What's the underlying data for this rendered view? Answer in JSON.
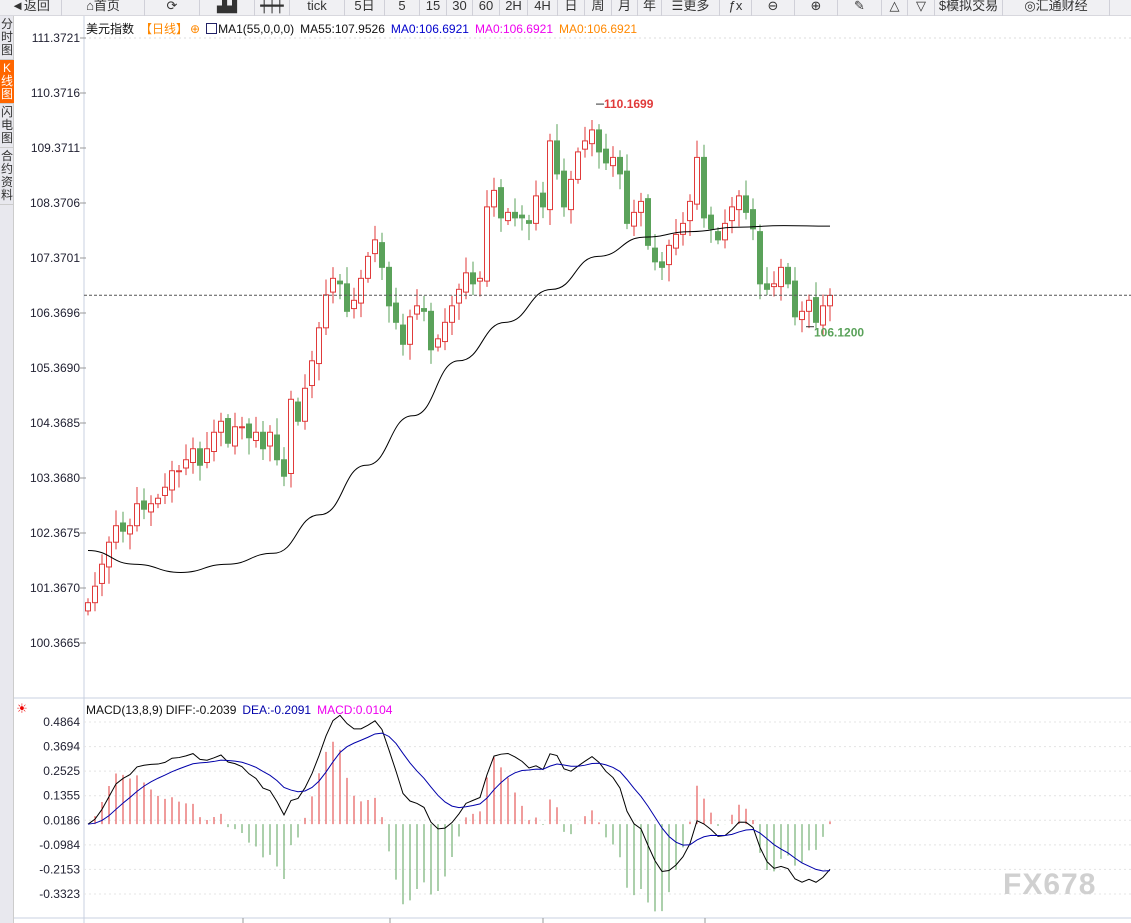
{
  "toolbar": [
    {
      "label": "◄返回",
      "name": "back-button",
      "w": 62
    },
    {
      "label": "⌂首页",
      "name": "home-button",
      "w": 83
    },
    {
      "label": "⟳",
      "name": "refresh-button",
      "w": 55
    },
    {
      "label": "▟▟",
      "name": "chart-type-button",
      "w": 55
    },
    {
      "label": "┿┿┿",
      "name": "candle-type-button",
      "w": 35
    },
    {
      "label": "tick",
      "name": "period-tick",
      "w": 55
    },
    {
      "label": "5日",
      "name": "period-5d",
      "w": 40
    },
    {
      "label": "5",
      "name": "period-5",
      "w": 35
    },
    {
      "label": "15",
      "name": "period-15",
      "w": 27
    },
    {
      "label": "30",
      "name": "period-30",
      "w": 26
    },
    {
      "label": "60",
      "name": "period-60",
      "w": 27
    },
    {
      "label": "2H",
      "name": "period-2h",
      "w": 28
    },
    {
      "label": "4H",
      "name": "period-4h",
      "w": 30
    },
    {
      "label": "日",
      "name": "period-day",
      "w": 27
    },
    {
      "label": "周",
      "name": "period-week",
      "w": 27
    },
    {
      "label": "月",
      "name": "period-month",
      "w": 26
    },
    {
      "label": "年",
      "name": "period-year",
      "w": 24
    },
    {
      "label": "☰更多",
      "name": "more-button",
      "w": 58
    },
    {
      "label": "ƒx",
      "name": "formula-button",
      "w": 32
    },
    {
      "label": "⊖",
      "name": "zoom-out-button",
      "w": 43
    },
    {
      "label": "⊕",
      "name": "zoom-in-button",
      "w": 43
    },
    {
      "label": "✎",
      "name": "draw-button",
      "w": 44
    },
    {
      "label": "△",
      "name": "triangle-up-button",
      "w": 26
    },
    {
      "label": "▽",
      "name": "triangle-down-button",
      "w": 27
    },
    {
      "label": "$模拟交易",
      "name": "sim-trade-button",
      "w": 68
    },
    {
      "label": "◎汇通财经",
      "name": "huitong-button",
      "w": 107
    }
  ],
  "sidebar": [
    {
      "label": "分时图",
      "active": false
    },
    {
      "label": "K线图",
      "active": true
    },
    {
      "label": "闪电图",
      "active": false
    },
    {
      "label": "合约资料",
      "active": false
    }
  ],
  "legend": {
    "symbol": "美元指数",
    "period": "【日线】",
    "ma_name": "MA1(55,0,0,0)",
    "ma55": "MA55:107.9526",
    "ma0a": "MA0:106.6921",
    "ma0b": "MA0:106.6921",
    "ma0c": "MA0:106.6921"
  },
  "macd_legend": {
    "name": "MACD(13,8,9)",
    "diff": "DIFF:-0.2039",
    "dea": "DEA:-0.2091",
    "macd": "MACD:0.0104"
  },
  "watermark": "FX678",
  "colors": {
    "up": "#e03a3a",
    "down": "#5aa25a",
    "ma55": "#000000",
    "diff": "#000000",
    "dea": "#0000aa",
    "macd_label": "#ee00ee",
    "ma0a": "#0000cc",
    "ma0b": "#ee00ee",
    "ma0c": "#ff8800"
  },
  "chart_data": [
    {
      "type": "candlestick",
      "title": "美元指数",
      "ylim": [
        100.3665,
        111.3721
      ],
      "yticks": [
        "111.3721",
        "110.3716",
        "109.3711",
        "108.3706",
        "107.3701",
        "106.3696",
        "105.3690",
        "104.3685",
        "103.3680",
        "102.3675",
        "101.3670",
        "100.3665"
      ],
      "annotations": {
        "high": "110.1699",
        "low": "106.1200"
      },
      "last_price": 106.6921,
      "close": [
        101.1,
        101.4,
        101.8,
        102.2,
        102.5,
        102.4,
        102.5,
        102.9,
        102.8,
        102.9,
        103.0,
        103.2,
        103.5,
        103.5,
        103.7,
        103.9,
        103.6,
        103.9,
        104.2,
        104.4,
        104.0,
        104.3,
        104.3,
        104.1,
        104.2,
        103.9,
        104.2,
        103.7,
        103.4,
        104.8,
        104.4,
        105.0,
        105.5,
        106.1,
        106.7,
        107.0,
        106.9,
        106.4,
        106.6,
        107.0,
        107.4,
        107.7,
        107.2,
        106.5,
        106.2,
        105.8,
        106.3,
        106.5,
        106.4,
        105.7,
        105.9,
        106.2,
        106.5,
        106.8,
        107.1,
        106.9,
        107.0,
        108.3,
        108.6,
        108.1,
        108.2,
        108.1,
        108.1,
        108.0,
        108.5,
        108.3,
        109.5,
        108.9,
        108.3,
        108.8,
        109.3,
        109.5,
        109.7,
        109.3,
        109.1,
        109.2,
        108.9,
        108.0,
        108.2,
        108.4,
        107.6,
        107.3,
        107.2,
        107.6,
        107.8,
        108.0,
        108.4,
        109.2,
        108.1,
        107.9,
        107.7,
        108.0,
        108.3,
        108.5,
        108.2,
        107.9,
        106.9,
        106.8,
        106.9,
        107.2,
        106.9,
        106.3,
        106.4,
        106.6,
        106.2,
        106.5,
        106.69
      ],
      "ma55": [
        102.05,
        101.8,
        101.65,
        101.8,
        102.0,
        102.7,
        103.6,
        104.5,
        105.5,
        106.2,
        106.8,
        107.4,
        107.75,
        107.85,
        107.93,
        107.96,
        107.95
      ]
    },
    {
      "type": "macd",
      "ylim": [
        -0.3323,
        0.4864
      ],
      "yticks": [
        "0.4864",
        "0.3694",
        "0.2525",
        "0.1355",
        "0.0186",
        "-0.0984",
        "-0.2153",
        "-0.3323"
      ]
    }
  ]
}
